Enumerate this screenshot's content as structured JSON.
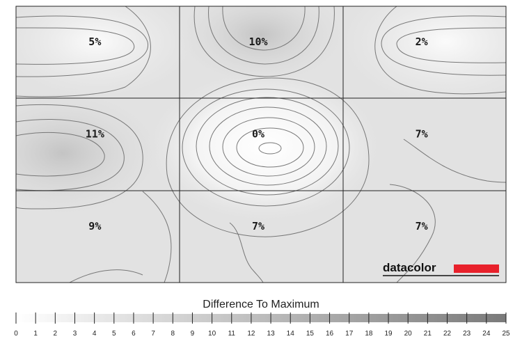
{
  "chart_data": {
    "type": "heatmap",
    "title": "",
    "grid": {
      "rows": 3,
      "cols": 3
    },
    "zones": [
      {
        "row": 0,
        "col": 0,
        "label": "5%",
        "value": 5
      },
      {
        "row": 0,
        "col": 1,
        "label": "10%",
        "value": 10
      },
      {
        "row": 0,
        "col": 2,
        "label": "2%",
        "value": 2
      },
      {
        "row": 1,
        "col": 0,
        "label": "11%",
        "value": 11
      },
      {
        "row": 1,
        "col": 1,
        "label": "0%",
        "value": 0
      },
      {
        "row": 1,
        "col": 2,
        "label": "7%",
        "value": 7
      },
      {
        "row": 2,
        "col": 0,
        "label": "9%",
        "value": 9
      },
      {
        "row": 2,
        "col": 1,
        "label": "7%",
        "value": 7
      },
      {
        "row": 2,
        "col": 2,
        "label": "7%",
        "value": 7
      }
    ],
    "legend": {
      "title": "Difference To Maximum",
      "min": 0,
      "max": 25,
      "ticks": [
        "0",
        "1",
        "2",
        "3",
        "4",
        "5",
        "6",
        "7",
        "8",
        "9",
        "10",
        "11",
        "12",
        "13",
        "14",
        "15",
        "16",
        "17",
        "18",
        "19",
        "20",
        "21",
        "22",
        "23",
        "24",
        "25"
      ]
    },
    "colors": {
      "light": "#ffffff",
      "dark": "#7a7a7a",
      "brand_bar": "#e8212b"
    }
  },
  "brand": {
    "text": "datacolor"
  }
}
